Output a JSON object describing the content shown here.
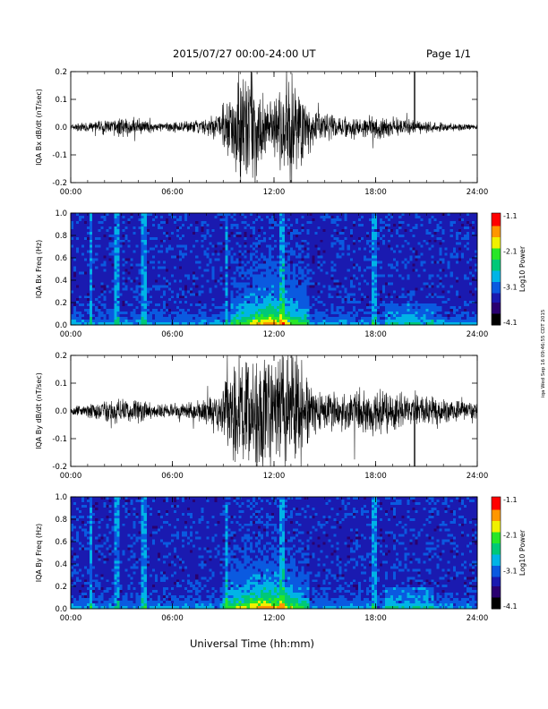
{
  "header": {
    "title": "2015/07/27  00:00-24:00 UT",
    "page": "Page 1/1"
  },
  "footer": {
    "xlabel": "Universal Time (hh:mm)",
    "stamp": "iqa Wed Sep 16 09:46:55 CDT 2015"
  },
  "colorscale": {
    "label": "Log10 Power",
    "ticks": [
      "-1.1",
      "-2.1",
      "-3.1",
      "-4.1"
    ],
    "colors": [
      "#000000",
      "#2a0070",
      "#1a1ab0",
      "#0a5ae0",
      "#00b4e6",
      "#00c878",
      "#28e628",
      "#f0f000",
      "#ff9600",
      "#ff0000"
    ]
  },
  "chart_data": [
    {
      "type": "line",
      "panel": "bx-dbdt",
      "ylabel": "IQA Bx dB/dt (nT/sec)",
      "x_ticks": [
        "00:00",
        "06:00",
        "12:00",
        "18:00",
        "24:00"
      ],
      "xlim": [
        0,
        24
      ],
      "ylim": [
        -0.2,
        0.2
      ],
      "y_ticks": [
        "0.2",
        "0.1",
        "0.0",
        "-0.1",
        "-0.2"
      ],
      "envelope": {
        "x_hours": [
          0,
          1,
          2,
          3,
          4,
          5,
          6,
          7,
          8,
          8.5,
          9.0,
          9.5,
          9.8,
          10.5,
          11.0,
          11.5,
          12.0,
          12.5,
          13.0,
          13.5,
          14.0,
          14.5,
          15,
          16,
          17,
          18,
          19,
          20,
          21,
          22,
          23,
          24
        ],
        "amplitude": [
          0.015,
          0.02,
          0.03,
          0.04,
          0.03,
          0.02,
          0.02,
          0.025,
          0.035,
          0.05,
          0.1,
          0.15,
          0.25,
          0.25,
          0.2,
          0.12,
          0.1,
          0.25,
          0.25,
          0.2,
          0.1,
          0.07,
          0.06,
          0.05,
          0.04,
          0.05,
          0.04,
          0.03,
          0.025,
          0.02,
          0.015,
          0.01
        ]
      },
      "spikes": [
        {
          "x_hour": 20.3,
          "value": 0.2
        }
      ]
    },
    {
      "type": "heatmap",
      "panel": "bx-spectrogram",
      "ylabel": "IQA Bx Freq (Hz)",
      "x_ticks": [
        "00:00",
        "06:00",
        "12:00",
        "18:00",
        "24:00"
      ],
      "xlim": [
        0,
        24
      ],
      "ylim": [
        0.0,
        1.0
      ],
      "y_ticks": [
        "1.0",
        "0.8",
        "0.6",
        "0.4",
        "0.2",
        "0.0"
      ],
      "power_range": [
        -4.1,
        -1.1
      ],
      "bright_band_hours": [
        9.5,
        14.0
      ],
      "vertical_lines_hours": [
        1.2,
        2.7,
        4.3,
        9.2,
        12.5,
        17.9
      ]
    },
    {
      "type": "line",
      "panel": "by-dbdt",
      "ylabel": "IQA By dB/dt (nT/sec)",
      "x_ticks": [
        "00:00",
        "06:00",
        "12:00",
        "18:00",
        "24:00"
      ],
      "xlim": [
        0,
        24
      ],
      "ylim": [
        -0.2,
        0.2
      ],
      "y_ticks": [
        "0.2",
        "0.1",
        "0.0",
        "-0.1",
        "-0.2"
      ],
      "envelope": {
        "x_hours": [
          0,
          1,
          2,
          3,
          4,
          5,
          6,
          7,
          8,
          8.5,
          9.0,
          9.5,
          9.8,
          10.5,
          11.0,
          11.5,
          12.0,
          12.5,
          13.0,
          13.5,
          14.0,
          14.5,
          15,
          16,
          17,
          18,
          19,
          20,
          21,
          22,
          23,
          24
        ],
        "amplitude": [
          0.02,
          0.03,
          0.045,
          0.055,
          0.05,
          0.03,
          0.03,
          0.035,
          0.05,
          0.07,
          0.12,
          0.25,
          0.25,
          0.25,
          0.25,
          0.25,
          0.2,
          0.25,
          0.25,
          0.25,
          0.15,
          0.1,
          0.08,
          0.08,
          0.09,
          0.1,
          0.08,
          0.07,
          0.06,
          0.05,
          0.04,
          0.035
        ]
      },
      "spikes": [
        {
          "x_hour": 20.3,
          "value": -0.2
        }
      ]
    },
    {
      "type": "heatmap",
      "panel": "by-spectrogram",
      "ylabel": "IQA By Freq (Hz)",
      "x_ticks": [
        "00:00",
        "06:00",
        "12:00",
        "18:00",
        "24:00"
      ],
      "xlim": [
        0,
        24
      ],
      "ylim": [
        0.0,
        1.0
      ],
      "y_ticks": [
        "1.0",
        "0.8",
        "0.6",
        "0.4",
        "0.2",
        "0.0"
      ],
      "power_range": [
        -4.1,
        -1.1
      ],
      "bright_band_hours": [
        9.0,
        14.0
      ],
      "vertical_lines_hours": [
        1.2,
        2.7,
        4.3,
        9.2,
        12.5,
        17.9
      ]
    }
  ]
}
